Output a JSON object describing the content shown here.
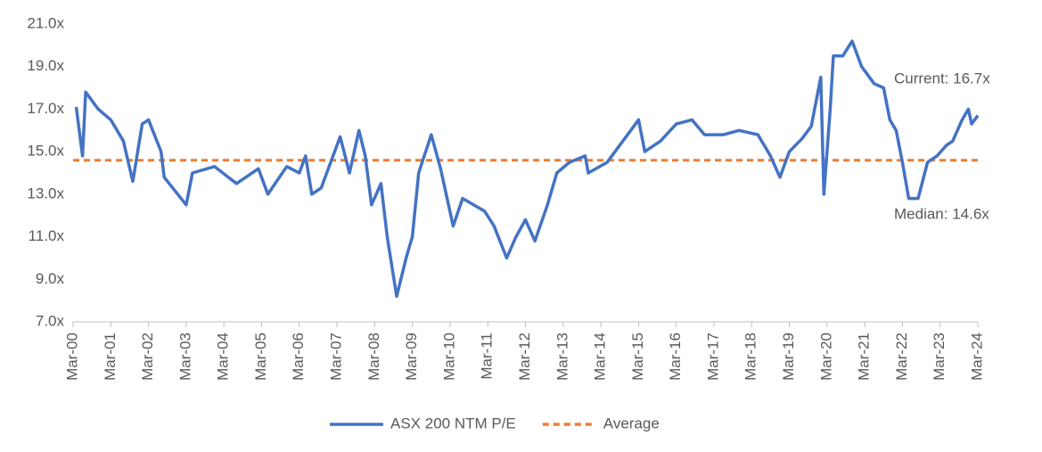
{
  "chart_data": {
    "type": "line",
    "annotations": [
      "Current: 16.7x",
      "Median: 14.6x"
    ],
    "xlim": [
      0,
      288
    ],
    "xticks": [
      {
        "value": 0,
        "label": "Mar-00"
      },
      {
        "value": 12,
        "label": "Mar-01"
      },
      {
        "value": 24,
        "label": "Mar-02"
      },
      {
        "value": 36,
        "label": "Mar-03"
      },
      {
        "value": 48,
        "label": "Mar-04"
      },
      {
        "value": 60,
        "label": "Mar-05"
      },
      {
        "value": 72,
        "label": "Mar-06"
      },
      {
        "value": 84,
        "label": "Mar-07"
      },
      {
        "value": 96,
        "label": "Mar-08"
      },
      {
        "value": 108,
        "label": "Mar-09"
      },
      {
        "value": 120,
        "label": "Mar-10"
      },
      {
        "value": 132,
        "label": "Mar-11"
      },
      {
        "value": 144,
        "label": "Mar-12"
      },
      {
        "value": 156,
        "label": "Mar-13"
      },
      {
        "value": 168,
        "label": "Mar-14"
      },
      {
        "value": 180,
        "label": "Mar-15"
      },
      {
        "value": 192,
        "label": "Mar-16"
      },
      {
        "value": 204,
        "label": "Mar-17"
      },
      {
        "value": 216,
        "label": "Mar-18"
      },
      {
        "value": 228,
        "label": "Mar-19"
      },
      {
        "value": 240,
        "label": "Mar-20"
      },
      {
        "value": 252,
        "label": "Mar-21"
      },
      {
        "value": 264,
        "label": "Mar-22"
      },
      {
        "value": 276,
        "label": "Mar-23"
      },
      {
        "value": 288,
        "label": "Mar-24"
      }
    ],
    "ylim": [
      7,
      21
    ],
    "yticks": [
      {
        "value": 7,
        "label": "7.0x"
      },
      {
        "value": 9,
        "label": "9.0x"
      },
      {
        "value": 11,
        "label": "11.0x"
      },
      {
        "value": 13,
        "label": "13.0x"
      },
      {
        "value": 15,
        "label": "15.0x"
      },
      {
        "value": 17,
        "label": "17.0x"
      },
      {
        "value": 19,
        "label": "19.0x"
      },
      {
        "value": 21,
        "label": "21.0x"
      }
    ],
    "legend": "bottom",
    "series": [
      {
        "name": "ASX 200 NTM P/E",
        "color": "#4472c4",
        "style": "solid",
        "x": [
          1,
          3,
          4,
          8,
          12,
          16,
          19,
          22,
          24,
          28,
          29,
          36,
          38,
          45,
          52,
          59,
          62,
          68,
          72,
          74,
          76,
          79,
          85,
          88,
          91,
          93,
          95,
          98,
          100,
          103,
          106,
          108,
          110,
          114,
          117,
          121,
          124,
          131,
          134,
          138,
          141,
          144,
          147,
          151,
          154,
          158,
          163,
          164,
          170,
          175,
          180,
          182,
          187,
          192,
          197,
          201,
          207,
          212,
          218,
          222,
          225,
          228,
          232,
          235,
          238,
          239,
          241,
          242,
          245,
          248,
          251,
          255,
          258,
          260,
          262,
          264,
          266,
          269,
          272,
          275,
          278,
          280,
          283,
          285,
          286,
          288
        ],
        "values": [
          17.1,
          14.8,
          17.8,
          17.0,
          16.5,
          15.5,
          13.6,
          16.3,
          16.5,
          15.0,
          13.8,
          12.5,
          14.0,
          14.3,
          13.5,
          14.2,
          13.0,
          14.3,
          14.0,
          14.8,
          13.0,
          13.3,
          15.7,
          14.0,
          16.0,
          14.8,
          12.5,
          13.5,
          11.0,
          8.2,
          10.0,
          11.0,
          14.0,
          15.8,
          14.2,
          11.5,
          12.8,
          12.2,
          11.5,
          10.0,
          11.0,
          11.8,
          10.8,
          12.5,
          14.0,
          14.5,
          14.8,
          14.0,
          14.5,
          15.5,
          16.5,
          15.0,
          15.5,
          16.3,
          16.5,
          15.8,
          15.8,
          16.0,
          15.8,
          14.8,
          13.8,
          15.0,
          15.6,
          16.2,
          18.5,
          13.0,
          17.0,
          19.5,
          19.5,
          20.2,
          19.0,
          18.2,
          18.0,
          16.5,
          16.0,
          14.5,
          12.8,
          12.8,
          14.5,
          14.8,
          15.3,
          15.5,
          16.5,
          17.0,
          16.3,
          16.7
        ]
      },
      {
        "name": "Average",
        "color": "#ed7d31",
        "style": "dashed",
        "x": [
          0,
          288
        ],
        "values": [
          14.6,
          14.6
        ]
      }
    ]
  }
}
